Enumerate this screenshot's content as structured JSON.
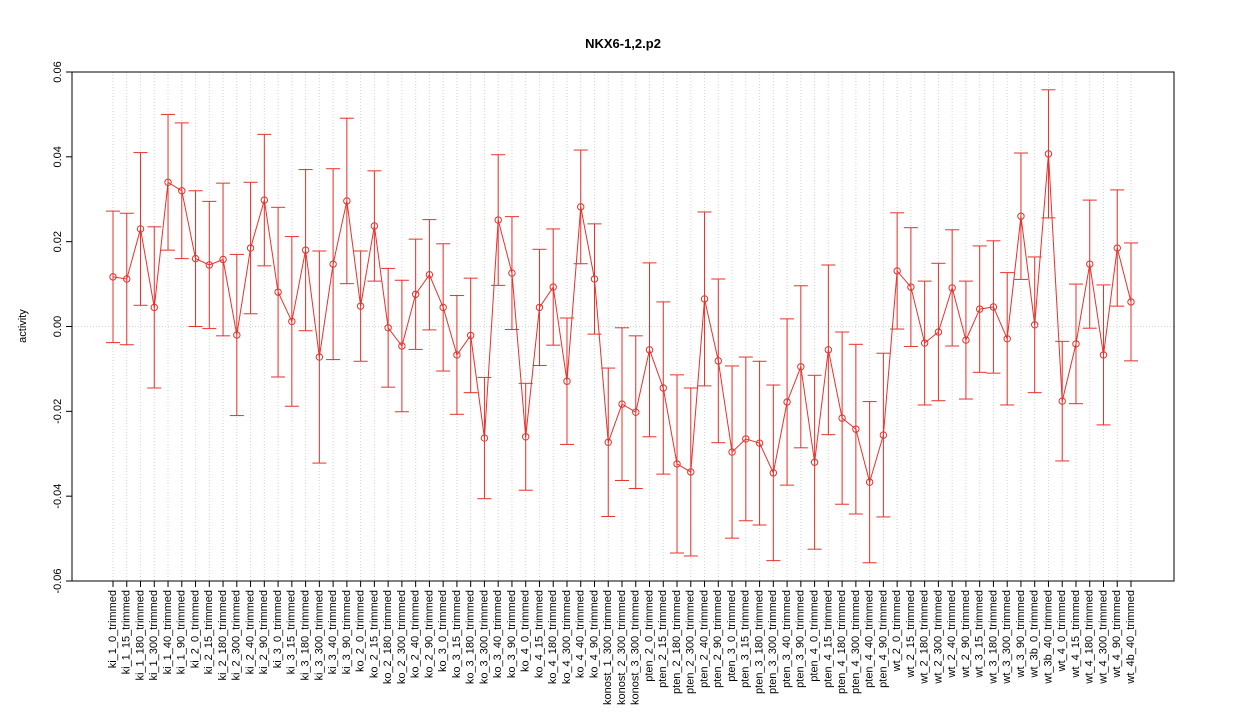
{
  "chart_data": {
    "type": "line",
    "title": "NKX6-1,2.p2",
    "ylabel": "activity",
    "categories": [
      "ki_1_0_trimmed",
      "ki_1_15_trimmed",
      "ki_1_180_trimmed",
      "ki_1_300_trimmed",
      "ki_1_40_trimmed",
      "ki_1_90_trimmed",
      "ki_2_0_trimmed",
      "ki_2_15_trimmed",
      "ki_2_180_trimmed",
      "ki_2_300_trimmed",
      "ki_2_40_trimmed",
      "ki_2_90_trimmed",
      "ki_3_0_trimmed",
      "ki_3_15_trimmed",
      "ki_3_180_trimmed",
      "ki_3_300_trimmed",
      "ki_3_40_trimmed",
      "ki_3_90_trimmed",
      "ko_2_0_trimmed",
      "ko_2_15_trimmed",
      "ko_2_180_trimmed",
      "ko_2_300_trimmed",
      "ko_2_40_trimmed",
      "ko_2_90_trimmed",
      "ko_3_0_trimmed",
      "ko_3_15_trimmed",
      "ko_3_180_trimmed",
      "ko_3_300_trimmed",
      "ko_3_40_trimmed",
      "ko_3_90_trimmed",
      "ko_4_0_trimmed",
      "ko_4_15_trimmed",
      "ko_4_180_trimmed",
      "ko_4_300_trimmed",
      "ko_4_40_trimmed",
      "ko_4_90_trimmed",
      "konost_1_300_trimmed",
      "konost_2_300_trimmed",
      "konost_3_300_trimmed",
      "pten_2_0_trimmed",
      "pten_2_15_trimmed",
      "pten_2_180_trimmed",
      "pten_2_300_trimmed",
      "pten_2_40_trimmed",
      "pten_2_90_trimmed",
      "pten_3_0_trimmed",
      "pten_3_15_trimmed",
      "pten_3_180_trimmed",
      "pten_3_300_trimmed",
      "pten_3_40_trimmed",
      "pten_3_90_trimmed",
      "pten_4_0_trimmed",
      "pten_4_15_trimmed",
      "pten_4_180_trimmed",
      "pten_4_300_trimmed",
      "pten_4_40_trimmed",
      "pten_4_90_trimmed",
      "wt_2_0_trimmed",
      "wt_2_15_trimmed",
      "wt_2_180_trimmed",
      "wt_2_300_trimmed",
      "wt_2_40_trimmed",
      "wt_2_90_trimmed",
      "wt_3_15_trimmed",
      "wt_3_180_trimmed",
      "wt_3_300_trimmed",
      "wt_3_90_trimmed",
      "wt_3b_0_trimmed",
      "wt_3b_40_trimmed",
      "wt_4_0_trimmed",
      "wt_4_15_trimmed",
      "wt_4_180_trimmed",
      "wt_4_300_trimmed",
      "wt_4_90_trimmed",
      "wt_4b_40_trimmed"
    ],
    "values": [
      0.0117,
      0.0112,
      0.023,
      0.0045,
      0.034,
      0.032,
      0.016,
      0.0145,
      0.0158,
      -0.002,
      0.0185,
      0.0298,
      0.0081,
      0.0012,
      0.018,
      -0.0072,
      0.0147,
      0.0296,
      0.0048,
      0.0237,
      -0.0003,
      -0.0046,
      0.0076,
      0.0122,
      0.0045,
      -0.0067,
      -0.0021,
      -0.0263,
      0.0251,
      0.0126,
      -0.026,
      0.0045,
      0.0093,
      -0.0129,
      0.0282,
      0.0112,
      -0.0273,
      -0.0183,
      -0.0202,
      -0.0055,
      -0.0145,
      -0.0324,
      -0.0343,
      0.0065,
      -0.0081,
      -0.0296,
      -0.0265,
      -0.0275,
      -0.0345,
      -0.0178,
      -0.0095,
      -0.032,
      -0.0055,
      -0.0216,
      -0.0242,
      -0.0367,
      -0.0256,
      0.0131,
      0.0093,
      -0.0039,
      -0.0013,
      0.0091,
      -0.0032,
      0.0041,
      0.0046,
      -0.0029,
      0.026,
      0.0004,
      0.0407,
      -0.0176,
      -0.0041,
      0.0147,
      -0.0067,
      0.0185,
      0.0058
    ],
    "errors": [
      0.0155,
      0.0155,
      0.018,
      0.019,
      0.016,
      0.016,
      0.016,
      0.015,
      0.018,
      0.019,
      0.0155,
      0.0155,
      0.02,
      0.02,
      0.019,
      0.025,
      0.0225,
      0.0195,
      0.013,
      0.013,
      0.014,
      0.0155,
      0.013,
      0.013,
      0.015,
      0.014,
      0.0135,
      0.0143,
      0.0154,
      0.0133,
      0.0126,
      0.0137,
      0.0137,
      0.0149,
      0.0134,
      0.013,
      0.0175,
      0.018,
      0.018,
      0.0205,
      0.0203,
      0.021,
      0.0198,
      0.0205,
      0.0193,
      0.0203,
      0.0193,
      0.0193,
      0.0207,
      0.0196,
      0.0191,
      0.0205,
      0.02,
      0.0203,
      0.02,
      0.019,
      0.0193,
      0.0137,
      0.014,
      0.0146,
      0.0162,
      0.0137,
      0.0139,
      0.0149,
      0.0156,
      0.0156,
      0.0149,
      0.016,
      0.0151,
      0.0141,
      0.0141,
      0.0151,
      0.0165,
      0.0137,
      0.0139
    ],
    "color": "#e8302a",
    "ylim": [
      -0.06,
      0.06
    ],
    "yticks": [
      -0.06,
      -0.04,
      -0.02,
      {
        "value": 0,
        "label": "0.00"
      },
      0.02,
      0.04,
      0.06
    ],
    "grid": true
  }
}
